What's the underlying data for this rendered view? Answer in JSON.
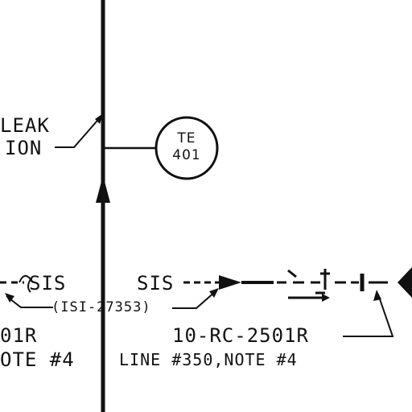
{
  "labels": {
    "leak_line1": "LEAK",
    "leak_line2": "ION",
    "instrument_tag_top": "TE",
    "instrument_tag_bottom": "401",
    "sis_left": "SIS",
    "sis_right": "SIS",
    "signal_tag": "(ISI-27353)",
    "line_left_partial": "01R",
    "note_left_partial": "OTE #4",
    "line_right": "10-RC-2501R",
    "note_right": "LINE #350,NOTE #4"
  },
  "colors": {
    "ink": "#111111",
    "background": "#ffffff"
  }
}
